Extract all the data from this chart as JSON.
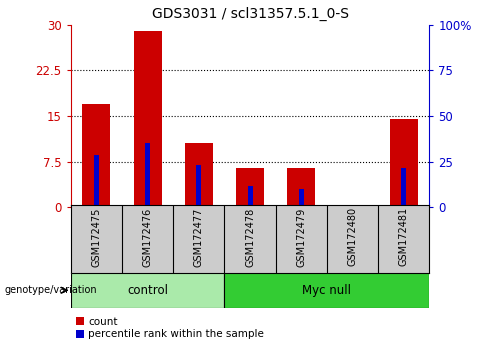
{
  "title": "GDS3031 / scl31357.5.1_0-S",
  "samples": [
    "GSM172475",
    "GSM172476",
    "GSM172477",
    "GSM172478",
    "GSM172479",
    "GSM172480",
    "GSM172481"
  ],
  "count_values": [
    17.0,
    29.0,
    10.5,
    6.5,
    6.5,
    0.1,
    14.5
  ],
  "percentile_left": [
    8.5,
    10.5,
    7.0,
    3.5,
    3.0,
    0.1,
    6.5
  ],
  "ylim_left": [
    0,
    30
  ],
  "ylim_right": [
    0,
    100
  ],
  "yticks_left": [
    0,
    7.5,
    15,
    22.5,
    30
  ],
  "ytick_labels_left": [
    "0",
    "7.5",
    "15",
    "22.5",
    "30"
  ],
  "yticks_right": [
    0,
    25,
    50,
    75,
    100
  ],
  "ytick_labels_right": [
    "0",
    "25",
    "50",
    "75",
    "100%"
  ],
  "bar_color": "#cc0000",
  "percentile_color": "#0000cc",
  "bar_width": 0.55,
  "groups": [
    {
      "label": "control",
      "indices": [
        0,
        1,
        2
      ],
      "color": "#aaeaaa"
    },
    {
      "label": "Myc null",
      "indices": [
        3,
        4,
        5,
        6
      ],
      "color": "#33cc33"
    }
  ],
  "group_row_color": "#cccccc",
  "legend_count_label": "count",
  "legend_percentile_label": "percentile rank within the sample",
  "left_axis_color": "#cc0000",
  "right_axis_color": "#0000cc"
}
